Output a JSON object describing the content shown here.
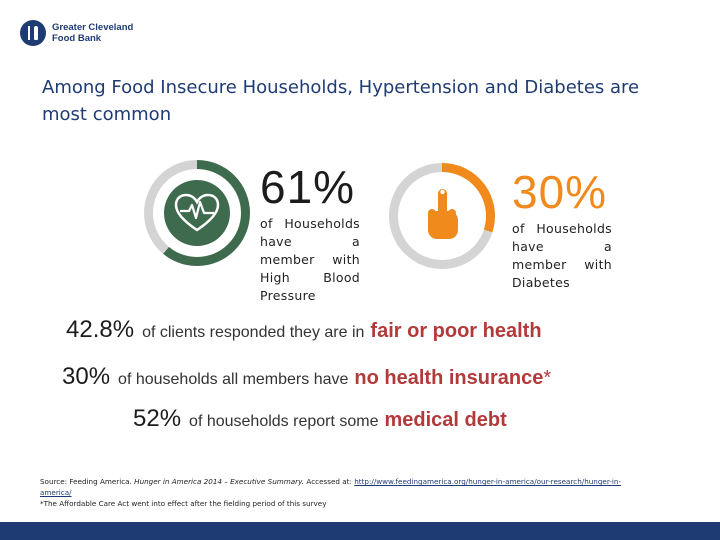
{
  "logo": {
    "line1": "Greater Cleveland",
    "line2": "Food Bank"
  },
  "title": "Among Food Insecure Households, Hypertension and Diabetes are most common",
  "stats_top": [
    {
      "percent": "61%",
      "value": 61,
      "description": "of Households have a member with High Blood Pressure",
      "icon": "heart-pulse-icon",
      "color": "#3e6b4e"
    },
    {
      "percent": "30%",
      "value": 30,
      "description": "of Households have a member with Diabetes",
      "icon": "finger-prick-icon",
      "color": "#f08a1c"
    }
  ],
  "stats_bottom": [
    {
      "number": "42.8%",
      "text": "of clients responded they are in",
      "highlight": "fair or poor health",
      "suffix": ""
    },
    {
      "number": "30%",
      "text": "of households all members have",
      "highlight": "no health insurance",
      "suffix": "*"
    },
    {
      "number": "52%",
      "text": "of households report some",
      "highlight": "medical debt",
      "suffix": ""
    }
  ],
  "source": {
    "prefix": "Source: Feeding America.",
    "italic": "Hunger in America 2014 – Executive Summary.",
    "accessed": "Accessed at:",
    "link": "http://www.feedingamerica.org/hunger-in-america/our-research/hunger-in-america/",
    "footnote": "*The Affordable Care Act went into effect after the fielding period of this survey"
  },
  "colors": {
    "brand_blue": "#1f3b73",
    "highlight_red": "#b23a3a",
    "ring_gray": "#d4d4d4"
  }
}
